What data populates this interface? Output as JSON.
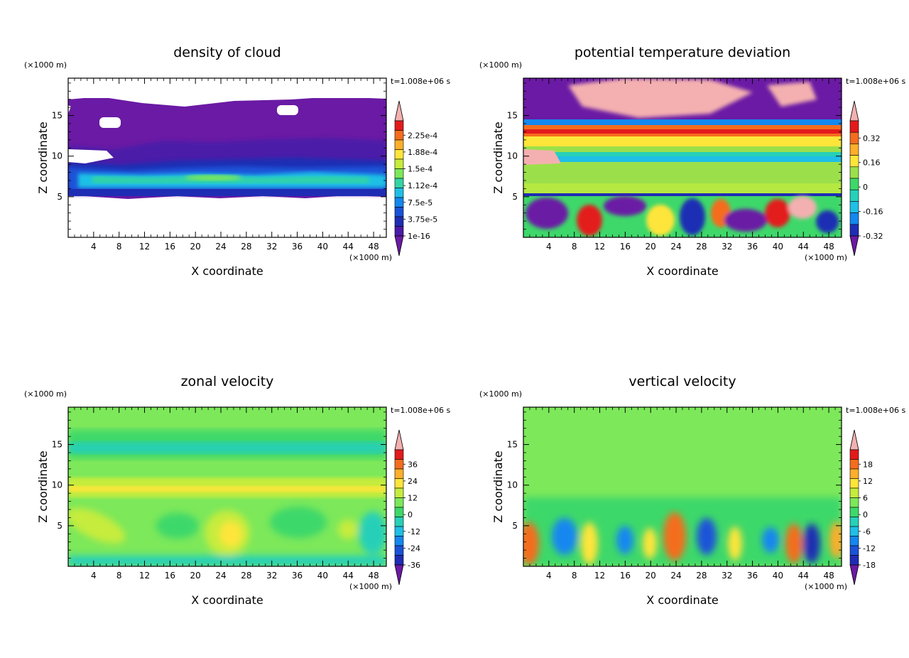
{
  "time_label": "t=1.008e+06 s",
  "x_unit": "(×1000 m)",
  "z_unit": "(×1000 m)",
  "x_axis_label": "X coordinate",
  "z_axis_label": "Z coordinate",
  "x_ticks": [
    "4",
    "8",
    "12",
    "16",
    "20",
    "24",
    "28",
    "32",
    "36",
    "40",
    "44",
    "48"
  ],
  "z_ticks": [
    "5",
    "10",
    "15"
  ],
  "chart_data": [
    {
      "type": "heatmap",
      "title": "density of cloud",
      "xlabel": "X coordinate",
      "ylabel": "Z coordinate",
      "xlim": [
        0,
        50
      ],
      "ylim": [
        0,
        19.6
      ],
      "colorbar": {
        "labels": [
          "2.25e-4",
          "1.88e-4",
          "1.5e-4",
          "1.12e-4",
          "7.5e-5",
          "3.75e-5",
          "1e-16"
        ],
        "colors": [
          "#f4b0b0",
          "#e31a1c",
          "#f46d1e",
          "#fdae2b",
          "#fee53a",
          "#c6ec3c",
          "#7ce85a",
          "#33d4a4",
          "#1fbfe6",
          "#1487f0",
          "#1a52d8",
          "#1e2db4",
          "#4b1aa8",
          "#6a1aa4"
        ]
      }
    },
    {
      "type": "heatmap",
      "title": "potential temperature deviation",
      "xlabel": "X coordinate",
      "ylabel": "Z coordinate",
      "xlim": [
        0,
        50
      ],
      "ylim": [
        0,
        19.6
      ],
      "colorbar": {
        "labels": [
          "0.32",
          "0.16",
          "0",
          "-0.16",
          "-0.32"
        ],
        "colors": [
          "#f4b0b0",
          "#e31a1c",
          "#f46d1e",
          "#fdae2b",
          "#fee53a",
          "#9be04a",
          "#3ed86a",
          "#27d0b8",
          "#1fbfe6",
          "#1487f0",
          "#1e2db4",
          "#6a1aa4"
        ]
      }
    },
    {
      "type": "heatmap",
      "title": "zonal velocity",
      "xlabel": "X coordinate",
      "ylabel": "Z coordinate",
      "xlim": [
        0,
        50
      ],
      "ylim": [
        0,
        19.6
      ],
      "colorbar": {
        "labels": [
          "36",
          "24",
          "12",
          "0",
          "-12",
          "-24",
          "-36"
        ],
        "colors": [
          "#f4b0b0",
          "#e31a1c",
          "#f46d1e",
          "#fdae2b",
          "#fee53a",
          "#c6ec3c",
          "#7ce85a",
          "#3ed86a",
          "#27d0b8",
          "#1fbfe6",
          "#1487f0",
          "#1a52d8",
          "#1e2db4",
          "#6a1aa4"
        ]
      }
    },
    {
      "type": "heatmap",
      "title": "vertical velocity",
      "xlabel": "X coordinate",
      "ylabel": "Z coordinate",
      "xlim": [
        0,
        50
      ],
      "ylim": [
        0,
        19.6
      ],
      "colorbar": {
        "labels": [
          "18",
          "12",
          "6",
          "0",
          "-6",
          "-12",
          "-18"
        ],
        "colors": [
          "#f4b0b0",
          "#e31a1c",
          "#f46d1e",
          "#fdae2b",
          "#fee53a",
          "#c6ec3c",
          "#7ce85a",
          "#3ed86a",
          "#27d0b8",
          "#1fbfe6",
          "#1487f0",
          "#1a52d8",
          "#1e2db4",
          "#6a1aa4"
        ]
      }
    }
  ]
}
